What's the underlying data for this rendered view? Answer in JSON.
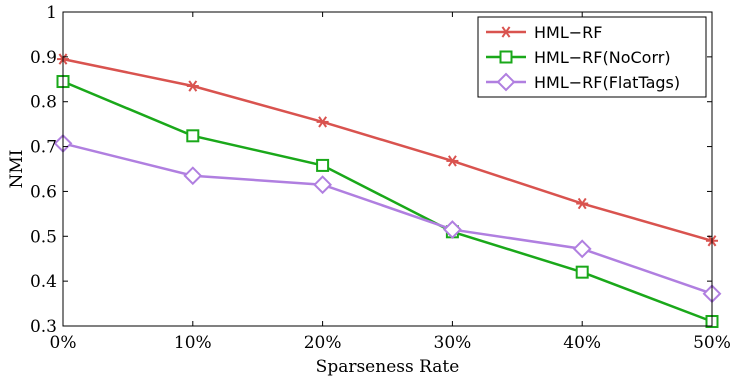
{
  "chart_data": {
    "type": "line",
    "categories": [
      "0%",
      "10%",
      "20%",
      "30%",
      "40%",
      "50%"
    ],
    "xlabel": "Sparseness Rate",
    "ylabel": "NMI",
    "ylim": [
      0.3,
      1.0
    ],
    "yticks": [
      "0.3",
      "0.4",
      "0.5",
      "0.6",
      "0.7",
      "0.8",
      "0.9",
      "1"
    ],
    "grid": false,
    "legend_position": "top-right",
    "series": [
      {
        "name": "HML−RF",
        "values": [
          0.895,
          0.835,
          0.755,
          0.668,
          0.573,
          0.49
        ],
        "color": "#d9534f",
        "marker": "asterisk"
      },
      {
        "name": "HML−RF(NoCorr)",
        "values": [
          0.845,
          0.724,
          0.658,
          0.51,
          0.42,
          0.31
        ],
        "color": "#1aa81a",
        "marker": "square"
      },
      {
        "name": "HML−RF(FlatTags)",
        "values": [
          0.707,
          0.635,
          0.615,
          0.515,
          0.472,
          0.372
        ],
        "color": "#b07fe0",
        "marker": "diamond"
      }
    ]
  }
}
